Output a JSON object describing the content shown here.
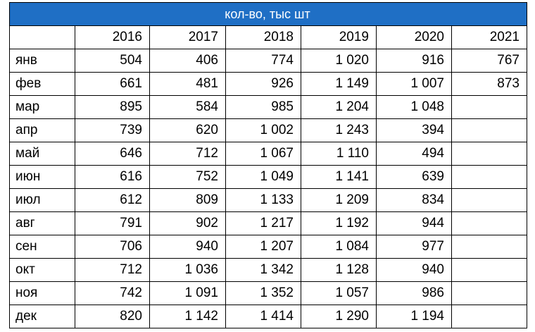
{
  "header": {
    "title": "кол-во, тыс шт"
  },
  "table": {
    "columns": [
      null,
      "2016",
      "2017",
      "2018",
      "2019",
      "2020",
      "2021"
    ],
    "rows": [
      [
        "янв",
        "504",
        "406",
        "774",
        "1 020",
        "916",
        "767"
      ],
      [
        "фев",
        "661",
        "481",
        "926",
        "1 149",
        "1 007",
        "873"
      ],
      [
        "мар",
        "895",
        "584",
        "985",
        "1 204",
        "1 048",
        null
      ],
      [
        "апр",
        "739",
        "620",
        "1 002",
        "1 243",
        "394",
        null
      ],
      [
        "май",
        "646",
        "712",
        "1 067",
        "1 110",
        "494",
        null
      ],
      [
        "июн",
        "616",
        "752",
        "1 049",
        "1 141",
        "639",
        null
      ],
      [
        "июл",
        "612",
        "809",
        "1 133",
        "1 209",
        "834",
        null
      ],
      [
        "авг",
        "791",
        "902",
        "1 217",
        "1 192",
        "944",
        null
      ],
      [
        "сен",
        "706",
        "940",
        "1 207",
        "1 084",
        "977",
        null
      ],
      [
        "окт",
        "712",
        "1 036",
        "1 342",
        "1 128",
        "940",
        null
      ],
      [
        "ноя",
        "742",
        "1 091",
        "1 352",
        "1 057",
        "986",
        null
      ],
      [
        "дек",
        "820",
        "1 142",
        "1 414",
        "1 290",
        "1 194",
        null
      ]
    ]
  }
}
